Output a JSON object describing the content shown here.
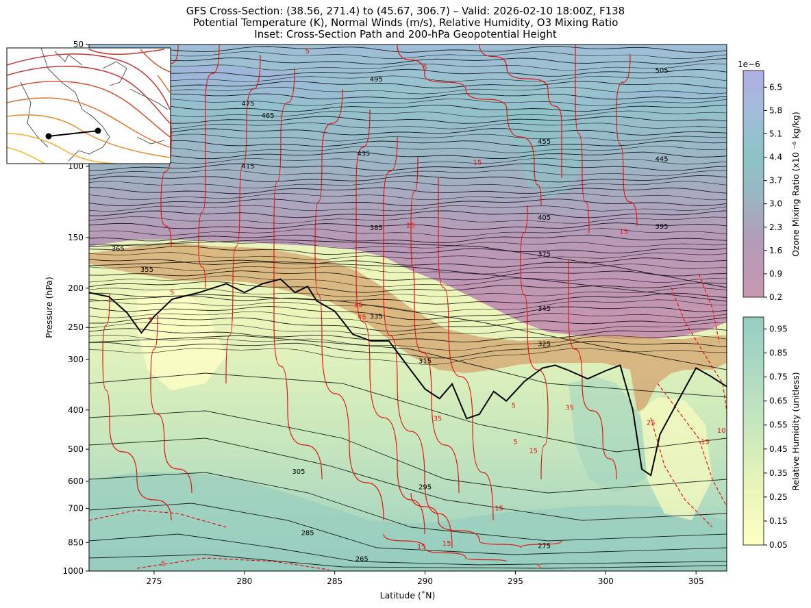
{
  "title_lines": [
    "GFS Cross-Section: (38.56, 271.4) to (45.67, 306.7) – Valid: 2026-02-10 18:00Z, F138",
    "Potential Temperature (K), Normal Winds (m/s), Relative Humidity, O3 Mixing Ratio",
    "Inset: Cross-Section Path and 200-hPa Geopotential Height"
  ],
  "chart_data": {
    "type": "heatmap",
    "xlabel": "Latitude (˚N)",
    "ylabel": "Pressure (hPa)",
    "xlim": [
      271.4,
      306.7
    ],
    "ylim": [
      1000,
      50
    ],
    "y_scale": "log",
    "x_ticks": [
      275,
      280,
      285,
      290,
      295,
      300,
      305
    ],
    "y_ticks": [
      1000,
      850,
      700,
      600,
      500,
      400,
      300,
      250,
      200,
      150,
      100,
      50
    ],
    "theta_labels": [
      {
        "text": "505",
        "x": 303.1,
        "p": 58
      },
      {
        "text": "495",
        "x": 287.3,
        "p": 61
      },
      {
        "text": "475",
        "x": 280.2,
        "p": 70
      },
      {
        "text": "465",
        "x": 281.3,
        "p": 75
      },
      {
        "text": "455",
        "x": 296.6,
        "p": 87
      },
      {
        "text": "445",
        "x": 303.1,
        "p": 96
      },
      {
        "text": "435",
        "x": 286.6,
        "p": 93
      },
      {
        "text": "415",
        "x": 280.2,
        "p": 100
      },
      {
        "text": "405",
        "x": 296.6,
        "p": 134
      },
      {
        "text": "395",
        "x": 303.1,
        "p": 141
      },
      {
        "text": "385",
        "x": 287.3,
        "p": 142
      },
      {
        "text": "375",
        "x": 296.6,
        "p": 165
      },
      {
        "text": "365",
        "x": 273.0,
        "p": 160
      },
      {
        "text": "355",
        "x": 274.6,
        "p": 180
      },
      {
        "text": "345",
        "x": 296.6,
        "p": 225
      },
      {
        "text": "335",
        "x": 287.3,
        "p": 235
      },
      {
        "text": "325",
        "x": 296.6,
        "p": 275
      },
      {
        "text": "315",
        "x": 290.0,
        "p": 303
      },
      {
        "text": "305",
        "x": 283.0,
        "p": 568
      },
      {
        "text": "295",
        "x": 290.0,
        "p": 620
      },
      {
        "text": "285",
        "x": 283.5,
        "p": 805
      },
      {
        "text": "275",
        "x": 296.6,
        "p": 868
      },
      {
        "text": "265",
        "x": 286.5,
        "p": 935
      }
    ],
    "wind_labels": [
      {
        "text": "5",
        "x": 283.5,
        "p": 52
      },
      {
        "text": "5",
        "x": 290.0,
        "p": 57
      },
      {
        "text": "15",
        "x": 292.9,
        "p": 98
      },
      {
        "text": "25",
        "x": 289.2,
        "p": 140
      },
      {
        "text": "15",
        "x": 301.0,
        "p": 145
      },
      {
        "text": "35",
        "x": 286.3,
        "p": 220
      },
      {
        "text": "45",
        "x": 286.5,
        "p": 236
      },
      {
        "text": "35",
        "x": 290.7,
        "p": 420
      },
      {
        "text": "5",
        "x": 294.9,
        "p": 390
      },
      {
        "text": "5",
        "x": 295.0,
        "p": 480
      },
      {
        "text": "15",
        "x": 296.0,
        "p": 505
      },
      {
        "text": "25",
        "x": 302.5,
        "p": 430
      },
      {
        "text": "15",
        "x": 305.5,
        "p": 480
      },
      {
        "text": "15",
        "x": 294.1,
        "p": 700
      },
      {
        "text": "15",
        "x": 289.8,
        "p": 870
      },
      {
        "text": "15",
        "x": 291.2,
        "p": 855
      },
      {
        "text": "5",
        "x": 296.3,
        "p": 975
      },
      {
        "text": "5",
        "x": 275.5,
        "p": 960
      },
      {
        "text": "5",
        "x": 274.8,
        "p": 240
      },
      {
        "text": "5",
        "x": 276.0,
        "p": 205
      },
      {
        "text": "35",
        "x": 298.0,
        "p": 395
      },
      {
        "text": "10",
        "x": 306.4,
        "p": 450
      }
    ],
    "tropopause": {
      "x": [
        271.4,
        272.5,
        273.5,
        274.3,
        275.0,
        276.0,
        277.5,
        279.0,
        280.0,
        281.0,
        282.0,
        282.8,
        283.5,
        284.0,
        285.0,
        286.0,
        287.0,
        288.0,
        289.0,
        290.0,
        290.8,
        291.5,
        292.3,
        293.0,
        293.8,
        294.5,
        295.5,
        296.5,
        297.2,
        298.0,
        299.0,
        300.0,
        300.8,
        301.5,
        302.0,
        302.5,
        303.0,
        304.0,
        305.0,
        305.8,
        306.7
      ],
      "p": [
        205,
        210,
        230,
        258,
        235,
        213,
        205,
        195,
        205,
        195,
        190,
        205,
        198,
        215,
        228,
        260,
        270,
        270,
        310,
        355,
        375,
        345,
        420,
        410,
        360,
        380,
        340,
        315,
        310,
        320,
        335,
        320,
        310,
        400,
        560,
        580,
        460,
        380,
        315,
        330,
        350
      ]
    },
    "colorbars": [
      {
        "label": "Ozone Mixing Ratio (x10 ⁻⁶ kg/kg)",
        "offset_label": "1e−6",
        "ticks": [
          "0.2",
          "0.9",
          "1.6",
          "2.3",
          "3.0",
          "3.7",
          "4.4",
          "5.1",
          "5.8",
          "6.5"
        ],
        "range": [
          0.2,
          7.0
        ],
        "colors": [
          "#c897b0",
          "#b696b4",
          "#9fb1c2",
          "#8bc2c4",
          "#9ec7d3",
          "#acb5de",
          "#aeb0e2"
        ]
      },
      {
        "label": "Relative Humidity (unitless)",
        "ticks": [
          "0.05",
          "0.15",
          "0.25",
          "0.35",
          "0.45",
          "0.55",
          "0.65",
          "0.75",
          "0.85",
          "0.95"
        ],
        "range": [
          0.05,
          1.0
        ],
        "colors": [
          "#ffffc2",
          "#f0f8b9",
          "#dff0b9",
          "#c8e8be",
          "#b4dfc1",
          "#a2d4c4",
          "#95cbc0"
        ]
      }
    ],
    "inset": {
      "title": "Cross-Section Path and 200-hPa Geopotential Height",
      "path_start": [
        38.56,
        271.4
      ],
      "path_end": [
        45.67,
        306.7
      ]
    }
  }
}
